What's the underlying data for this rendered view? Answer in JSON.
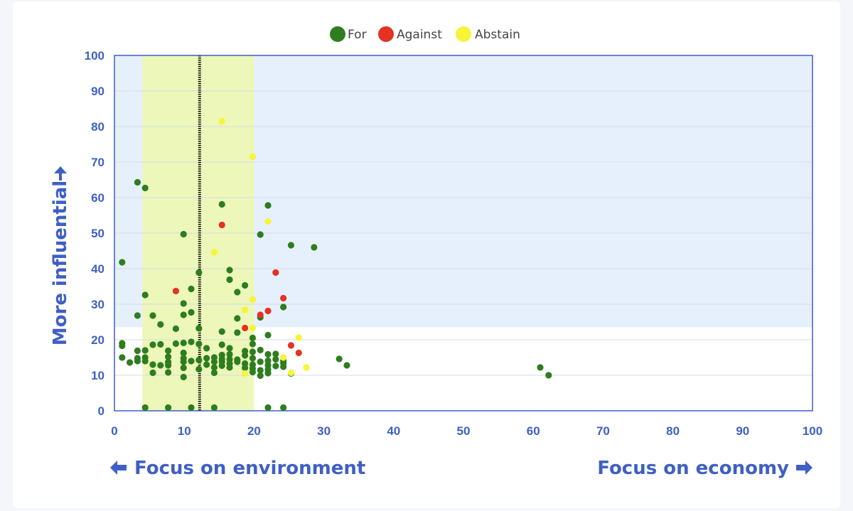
{
  "chart_data": {
    "type": "scatter",
    "legend": {
      "position": "top-center",
      "items": [
        {
          "name": "For",
          "color": "#2e7d1e"
        },
        {
          "name": "Against",
          "color": "#e53222"
        },
        {
          "name": "Abstain",
          "color": "#f7f43a"
        }
      ]
    },
    "xlim": [
      0,
      100
    ],
    "ylim": [
      0,
      100
    ],
    "x_ticks": [
      "0",
      "10",
      "20",
      "30",
      "40",
      "50",
      "60",
      "70",
      "80",
      "90",
      "100"
    ],
    "y_ticks": [
      "0",
      "10",
      "20",
      "30",
      "40",
      "50",
      "60",
      "70",
      "80",
      "90",
      "100"
    ],
    "ylabel": "More influential",
    "x_left_label": "Focus on environment",
    "x_right_label": "Focus on economy",
    "regions": [
      {
        "name": "more-influential-band",
        "x": [
          0,
          100
        ],
        "y": [
          23.5,
          100
        ],
        "color": "#e6f0fd"
      },
      {
        "name": "environment-band",
        "x": [
          4,
          20
        ],
        "y": [
          0,
          100
        ],
        "color": "#ecf7b9"
      }
    ],
    "reference_line": {
      "x": 12.2
    },
    "series": [
      {
        "name": "For",
        "color": "#2e7d1e",
        "points": [
          [
            1.1,
            41.8
          ],
          [
            1.1,
            19
          ],
          [
            1.1,
            18.3
          ],
          [
            1.1,
            15
          ],
          [
            2.2,
            13.6
          ],
          [
            3.3,
            14.8
          ],
          [
            3.3,
            14
          ],
          [
            3.3,
            16.9
          ],
          [
            3.3,
            26.8
          ],
          [
            3.3,
            64.3
          ],
          [
            4.4,
            62.7
          ],
          [
            4.4,
            32.6
          ],
          [
            4.4,
            17
          ],
          [
            4.4,
            15
          ],
          [
            4.4,
            14
          ],
          [
            4.4,
            0.9
          ],
          [
            5.5,
            26.8
          ],
          [
            5.5,
            18.6
          ],
          [
            5.5,
            13
          ],
          [
            5.5,
            10.7
          ],
          [
            6.6,
            24.3
          ],
          [
            6.6,
            18.7
          ],
          [
            6.6,
            12.8
          ],
          [
            7.7,
            16.9
          ],
          [
            7.7,
            15.2
          ],
          [
            7.7,
            13.7
          ],
          [
            7.7,
            12.8
          ],
          [
            7.7,
            10.8
          ],
          [
            7.7,
            0.9
          ],
          [
            8.8,
            23.1
          ],
          [
            8.8,
            18.9
          ],
          [
            9.9,
            49.7
          ],
          [
            9.9,
            30.2
          ],
          [
            9.9,
            27
          ],
          [
            9.9,
            19.1
          ],
          [
            9.9,
            16.3
          ],
          [
            9.9,
            14.8
          ],
          [
            9.9,
            13.8
          ],
          [
            9.9,
            12.1
          ],
          [
            9.9,
            9.5
          ],
          [
            11,
            34.3
          ],
          [
            11,
            27.7
          ],
          [
            11,
            19.4
          ],
          [
            11,
            14
          ],
          [
            11,
            0.9
          ],
          [
            12.1,
            38.9
          ],
          [
            12.1,
            23.2
          ],
          [
            12.1,
            18.8
          ],
          [
            12.1,
            14.3
          ],
          [
            12.1,
            11.7
          ],
          [
            13.2,
            17.6
          ],
          [
            13.2,
            14.8
          ],
          [
            13.2,
            13
          ],
          [
            14.3,
            15
          ],
          [
            14.3,
            13.8
          ],
          [
            14.3,
            12.2
          ],
          [
            14.3,
            10.7
          ],
          [
            14.3,
            0.9
          ],
          [
            15.4,
            58.1
          ],
          [
            15.4,
            22.3
          ],
          [
            15.4,
            18.6
          ],
          [
            15.4,
            15.7
          ],
          [
            15.4,
            14.6
          ],
          [
            15.4,
            13.8
          ],
          [
            15.4,
            12.7
          ],
          [
            16.5,
            39.6
          ],
          [
            16.5,
            36.9
          ],
          [
            16.5,
            17.6
          ],
          [
            16.5,
            15.9
          ],
          [
            16.5,
            14.5
          ],
          [
            16.5,
            13.3
          ],
          [
            16.5,
            12.2
          ],
          [
            17.6,
            33.4
          ],
          [
            17.6,
            26
          ],
          [
            17.6,
            22
          ],
          [
            17.6,
            14.4
          ],
          [
            17.6,
            13.8
          ],
          [
            18.7,
            35.3
          ],
          [
            18.7,
            16.8
          ],
          [
            18.7,
            15.6
          ],
          [
            18.7,
            13.3
          ],
          [
            18.7,
            12.1
          ],
          [
            19.8,
            20.5
          ],
          [
            19.8,
            18.8
          ],
          [
            19.8,
            16.6
          ],
          [
            19.8,
            14.8
          ],
          [
            19.8,
            13
          ],
          [
            19.8,
            11.9
          ],
          [
            19.8,
            10.9
          ],
          [
            20.9,
            49.6
          ],
          [
            20.9,
            26.3
          ],
          [
            20.9,
            17.1
          ],
          [
            20.9,
            13.8
          ],
          [
            20.9,
            11.4
          ],
          [
            20.9,
            9.9
          ],
          [
            22,
            57.8
          ],
          [
            22,
            21.3
          ],
          [
            22,
            15.9
          ],
          [
            22,
            14.1
          ],
          [
            22,
            12.8
          ],
          [
            22,
            11.6
          ],
          [
            22,
            10.6
          ],
          [
            22,
            0.9
          ],
          [
            23.1,
            16
          ],
          [
            23.1,
            14.5
          ],
          [
            23.1,
            12.6
          ],
          [
            24.2,
            29.2
          ],
          [
            24.2,
            14.1
          ],
          [
            24.2,
            13.4
          ],
          [
            24.2,
            12.4
          ],
          [
            24.2,
            0.9
          ],
          [
            25.3,
            46.6
          ],
          [
            25.3,
            10.5
          ],
          [
            28.6,
            46
          ],
          [
            32.2,
            14.6
          ],
          [
            33.3,
            12.8
          ],
          [
            61,
            12.2
          ],
          [
            62.2,
            10
          ]
        ]
      },
      {
        "name": "Against",
        "color": "#e53222",
        "points": [
          [
            8.8,
            33.7
          ],
          [
            15.4,
            52.3
          ],
          [
            18.7,
            23.3
          ],
          [
            20.9,
            27
          ],
          [
            22,
            28.1
          ],
          [
            23.1,
            38.9
          ],
          [
            24.2,
            31.7
          ],
          [
            25.3,
            18.4
          ],
          [
            26.4,
            16.3
          ]
        ]
      },
      {
        "name": "Abstain",
        "color": "#f7f43a",
        "points": [
          [
            14.3,
            44.6
          ],
          [
            15.4,
            81.5
          ],
          [
            18.7,
            28.4
          ],
          [
            18.7,
            10.5
          ],
          [
            19.8,
            71.5
          ],
          [
            19.8,
            31.3
          ],
          [
            19.8,
            23.3
          ],
          [
            22,
            53.3
          ],
          [
            24.2,
            15
          ],
          [
            25.3,
            10.7
          ],
          [
            26.4,
            20.6
          ],
          [
            27.5,
            12.2
          ]
        ]
      }
    ]
  }
}
